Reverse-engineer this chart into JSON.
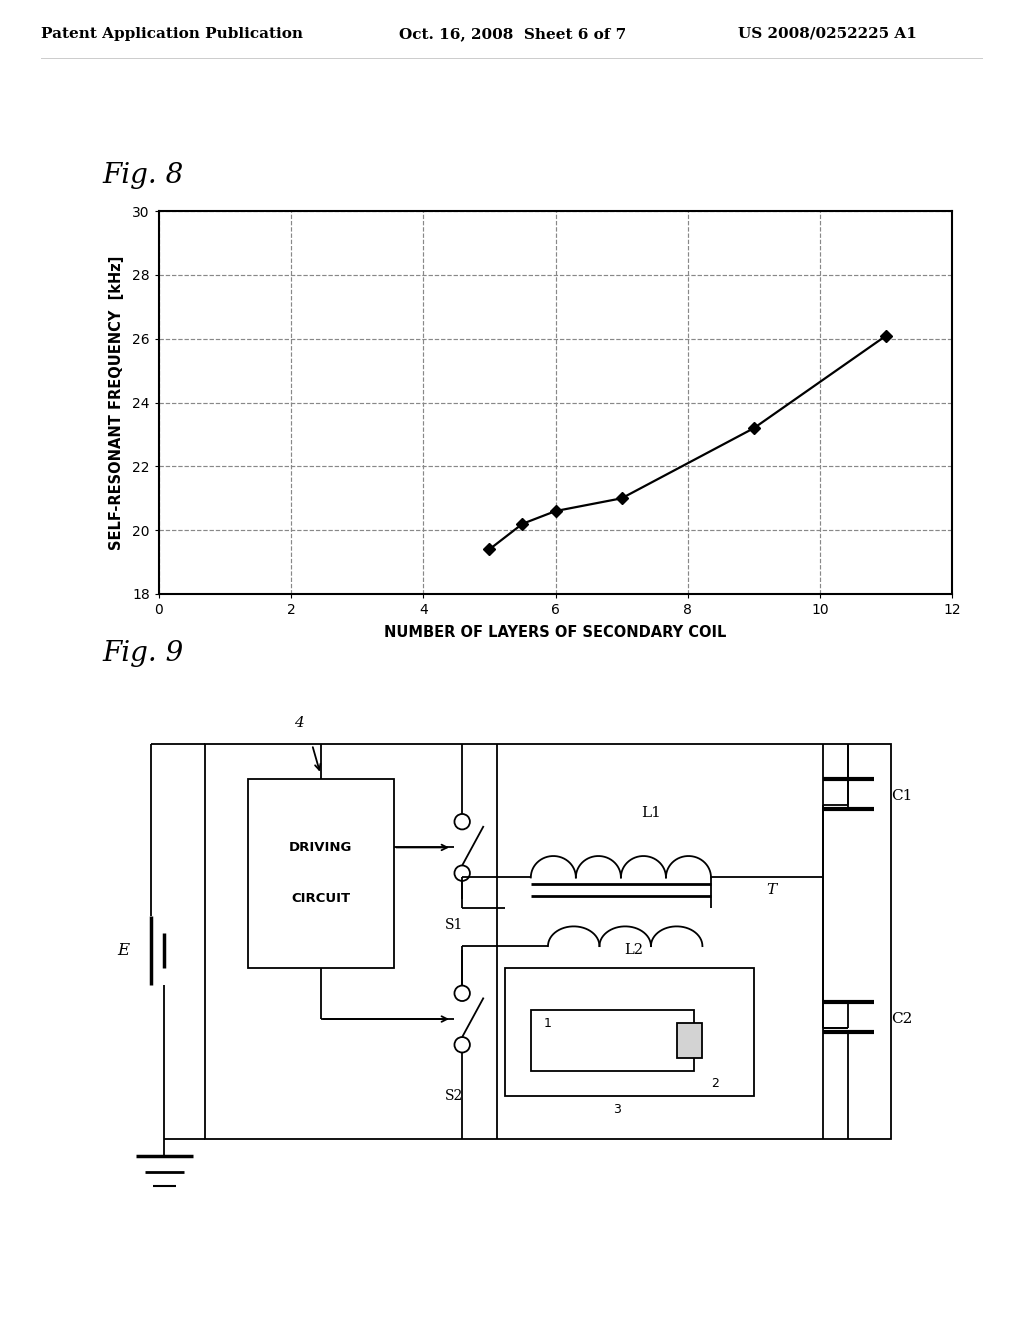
{
  "header_left": "Patent Application Publication",
  "header_center": "Oct. 16, 2008  Sheet 6 of 7",
  "header_right": "US 2008/0252225 A1",
  "fig8_title": "Fig. 8",
  "fig8_xlabel": "NUMBER OF LAYERS OF SECONDARY COIL",
  "fig8_ylabel": "SELF-RESONANT FREQUENCY  [kHz]",
  "fig8_xlim": [
    0,
    12
  ],
  "fig8_ylim": [
    18,
    30
  ],
  "fig8_xticks": [
    0,
    2,
    4,
    6,
    8,
    10,
    12
  ],
  "fig8_yticks": [
    18,
    20,
    22,
    24,
    26,
    28,
    30
  ],
  "fig8_x": [
    5.0,
    5.5,
    6.0,
    7.0,
    9.0,
    11.0
  ],
  "fig8_y": [
    19.4,
    20.2,
    20.6,
    21.0,
    23.2,
    26.1
  ],
  "fig9_title": "Fig. 9",
  "background": "#ffffff",
  "line_color": "#000000",
  "grid_color": "#888888"
}
